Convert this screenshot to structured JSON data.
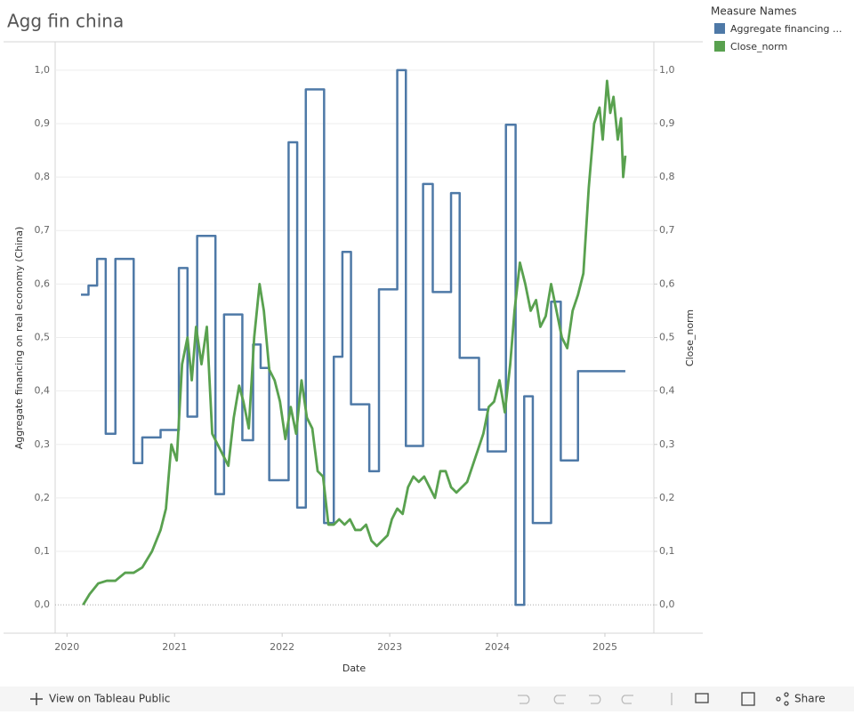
{
  "chart_data": {
    "type": "line",
    "title": "Agg fin china",
    "x_label": "Date",
    "y_label": "Aggregate financing on real economy (China)",
    "y2_label": "Close_norm",
    "legend_title": "Measure Names",
    "legend": "top-right",
    "grid": true,
    "xlim": [
      2019.89,
      2025.455
    ],
    "xticks": [
      2020,
      2021,
      2022,
      2023,
      2024,
      2025
    ],
    "ylim": [
      -0.053,
      1.053
    ],
    "yticks": [
      {
        "value": 0,
        "label": "0,0"
      },
      {
        "value": 0.1,
        "label": "0,1"
      },
      {
        "value": 0.2,
        "label": "0,2"
      },
      {
        "value": 0.3,
        "label": "0,3"
      },
      {
        "value": 0.4,
        "label": "0,4"
      },
      {
        "value": 0.5,
        "label": "0,5"
      },
      {
        "value": 0.6,
        "label": "0,6"
      },
      {
        "value": 0.7,
        "label": "0,7"
      },
      {
        "value": 0.8,
        "label": "0,8"
      },
      {
        "value": 0.9,
        "label": "0,9"
      },
      {
        "value": 1,
        "label": "1,0"
      }
    ],
    "y2lim": [
      -0.053,
      1.053
    ],
    "y2ticks": [
      {
        "value": 0,
        "label": "0,0"
      },
      {
        "value": 0.1,
        "label": "0,1"
      },
      {
        "value": 0.2,
        "label": "0,2"
      },
      {
        "value": 0.3,
        "label": "0,3"
      },
      {
        "value": 0.4,
        "label": "0,4"
      },
      {
        "value": 0.5,
        "label": "0,5"
      },
      {
        "value": 0.6,
        "label": "0,6"
      },
      {
        "value": 0.7,
        "label": "0,7"
      },
      {
        "value": 0.8,
        "label": "0,8"
      },
      {
        "value": 0.9,
        "label": "0,9"
      },
      {
        "value": 1,
        "label": "1,0"
      }
    ],
    "series": [
      {
        "name": "Aggregate financing ...",
        "color": "#4e79a7",
        "step": "after",
        "x": [
          2020.13,
          2020.2,
          2020.28,
          2020.36,
          2020.45,
          2020.62,
          2020.7,
          2020.87,
          2021.04,
          2021.12,
          2021.21,
          2021.38,
          2021.46,
          2021.63,
          2021.73,
          2021.8,
          2021.88,
          2022.06,
          2022.14,
          2022.22,
          2022.39,
          2022.48,
          2022.56,
          2022.64,
          2022.81,
          2022.9,
          2023.07,
          2023.15,
          2023.31,
          2023.4,
          2023.57,
          2023.65,
          2023.83,
          2023.91,
          2024.08,
          2024.17,
          2024.25,
          2024.33,
          2024.5,
          2024.59,
          2024.75,
          2025.19
        ],
        "values": [
          0.58,
          0.597,
          0.647,
          0.32,
          0.647,
          0.265,
          0.313,
          0.327,
          0.63,
          0.352,
          0.69,
          0.207,
          0.543,
          0.308,
          0.487,
          0.443,
          0.233,
          0.865,
          0.182,
          0.964,
          0.153,
          0.464,
          0.66,
          0.375,
          0.25,
          0.59,
          1.0,
          0.297,
          0.787,
          0.585,
          0.77,
          0.462,
          0.365,
          0.287,
          0.898,
          0.0,
          0.39,
          0.153,
          0.567,
          0.27,
          0.437,
          0.437
        ]
      },
      {
        "name": "Close_norm",
        "color": "#59a14f",
        "axis": "y2",
        "x": [
          2020.15,
          2020.21,
          2020.29,
          2020.37,
          2020.45,
          2020.54,
          2020.62,
          2020.7,
          2020.79,
          2020.87,
          2020.92,
          2020.97,
          2021.02,
          2021.07,
          2021.12,
          2021.16,
          2021.2,
          2021.25,
          2021.3,
          2021.35,
          2021.4,
          2021.45,
          2021.5,
          2021.55,
          2021.6,
          2021.64,
          2021.69,
          2021.74,
          2021.79,
          2021.83,
          2021.88,
          2021.93,
          2021.98,
          2022.03,
          2022.08,
          2022.13,
          2022.18,
          2022.23,
          2022.28,
          2022.33,
          2022.38,
          2022.43,
          2022.48,
          2022.53,
          2022.58,
          2022.63,
          2022.68,
          2022.73,
          2022.78,
          2022.83,
          2022.88,
          2022.93,
          2022.98,
          2023.02,
          2023.07,
          2023.12,
          2023.17,
          2023.22,
          2023.27,
          2023.32,
          2023.37,
          2023.42,
          2023.47,
          2023.52,
          2023.57,
          2023.62,
          2023.67,
          2023.72,
          2023.77,
          2023.82,
          2023.87,
          2023.92,
          2023.97,
          2024.02,
          2024.07,
          2024.12,
          2024.16,
          2024.21,
          2024.26,
          2024.31,
          2024.36,
          2024.4,
          2024.45,
          2024.5,
          2024.55,
          2024.6,
          2024.65,
          2024.7,
          2024.75,
          2024.8,
          2024.85,
          2024.9,
          2024.95,
          2024.98,
          2025.02,
          2025.05,
          2025.08,
          2025.12,
          2025.15,
          2025.17,
          2025.19
        ],
        "values": [
          0.0,
          0.02,
          0.04,
          0.045,
          0.045,
          0.06,
          0.06,
          0.07,
          0.1,
          0.14,
          0.18,
          0.3,
          0.27,
          0.45,
          0.5,
          0.42,
          0.52,
          0.45,
          0.52,
          0.32,
          0.3,
          0.28,
          0.26,
          0.35,
          0.41,
          0.38,
          0.33,
          0.5,
          0.6,
          0.55,
          0.44,
          0.42,
          0.38,
          0.31,
          0.37,
          0.32,
          0.42,
          0.35,
          0.33,
          0.25,
          0.24,
          0.15,
          0.15,
          0.16,
          0.15,
          0.16,
          0.14,
          0.14,
          0.15,
          0.12,
          0.11,
          0.12,
          0.13,
          0.16,
          0.18,
          0.17,
          0.22,
          0.24,
          0.23,
          0.24,
          0.22,
          0.2,
          0.25,
          0.25,
          0.22,
          0.21,
          0.22,
          0.23,
          0.26,
          0.29,
          0.32,
          0.37,
          0.38,
          0.42,
          0.36,
          0.45,
          0.55,
          0.64,
          0.6,
          0.55,
          0.57,
          0.52,
          0.54,
          0.6,
          0.55,
          0.5,
          0.48,
          0.55,
          0.58,
          0.62,
          0.78,
          0.9,
          0.93,
          0.87,
          0.98,
          0.92,
          0.95,
          0.87,
          0.91,
          0.8,
          0.84
        ]
      }
    ]
  },
  "toolbar": {
    "view_link": "View on Tableau Public",
    "share": "Share"
  }
}
